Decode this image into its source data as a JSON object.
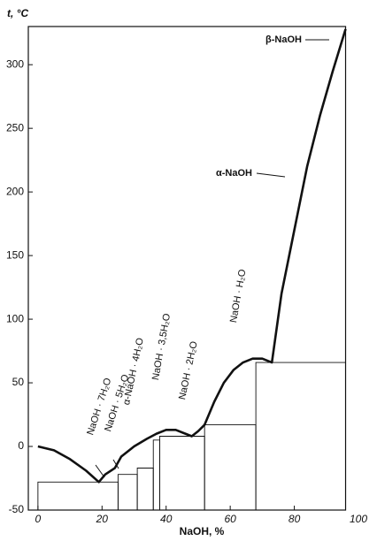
{
  "chart_data": {
    "type": "line",
    "xlabel": "NaOH, %",
    "ylabel": "t, °C",
    "xlim": [
      -3,
      100
    ],
    "ylim": [
      -50,
      330
    ],
    "xticks": [
      0,
      20,
      40,
      60,
      80,
      100
    ],
    "yticks": [
      -50,
      0,
      50,
      100,
      150,
      200,
      250,
      300
    ],
    "series": [
      {
        "color": "#111111",
        "x": [
          0,
          5,
          10,
          15,
          19,
          21,
          24,
          26,
          30,
          34,
          37,
          40,
          43,
          46,
          48,
          50,
          52,
          55,
          58,
          61,
          64,
          67,
          70,
          73,
          76,
          80,
          84,
          88,
          92,
          96
        ],
        "values": [
          0,
          -3,
          -10,
          -19,
          -28,
          -22,
          -17,
          -8,
          0,
          6,
          10,
          13,
          13,
          10,
          8,
          12,
          17,
          35,
          50,
          60,
          66,
          69,
          69,
          66,
          120,
          170,
          220,
          260,
          295,
          328
        ]
      }
    ],
    "boxes": [
      {
        "x": [
          0,
          25
        ],
        "t": -28
      },
      {
        "x": [
          25,
          31
        ],
        "t": -22
      },
      {
        "x": [
          31,
          36
        ],
        "t": -17
      },
      {
        "x": [
          36,
          38
        ],
        "t": 5
      },
      {
        "x": [
          38,
          52
        ],
        "t": 8
      },
      {
        "x": [
          52,
          68
        ],
        "t": 17
      },
      {
        "x": [
          68,
          96
        ],
        "t": 66
      }
    ],
    "annotations": [
      "NaOH · 7H₂O",
      "NaOH · 5H₂O",
      "α-NaOH · 4H₂O",
      "NaOH · 3,5H₂O",
      "NaOH · 2H₂O",
      "NaOH · H₂O",
      "α-NaOH",
      "β-NaOH"
    ]
  }
}
